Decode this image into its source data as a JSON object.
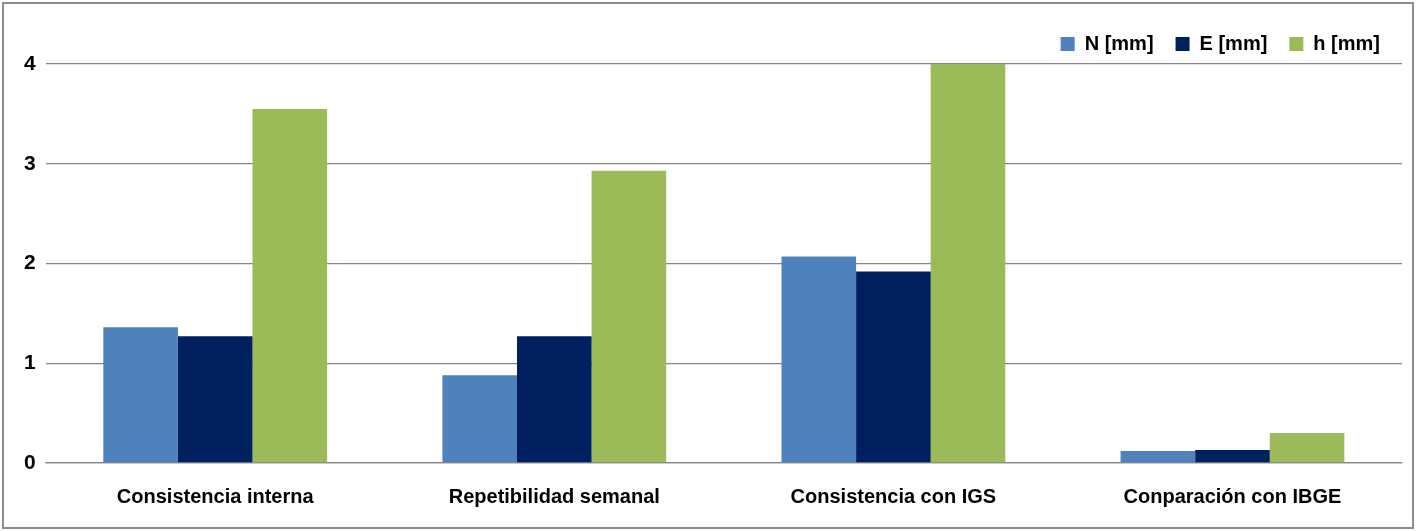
{
  "chart_data": {
    "type": "bar",
    "categories": [
      "Consistencia interna",
      "Repetibilidad semanal",
      "Consistencia con IGS",
      "Conparación con IBGE"
    ],
    "series": [
      {
        "name": "N [mm]",
        "color": "#4f81bd",
        "values": [
          1.36,
          0.88,
          2.07,
          0.12
        ]
      },
      {
        "name": "E [mm]",
        "color": "#002060",
        "values": [
          1.27,
          1.27,
          1.92,
          0.13
        ]
      },
      {
        "name": "h [mm]",
        "color": "#9bbb59",
        "values": [
          3.55,
          2.93,
          4.0,
          0.3
        ]
      }
    ],
    "ylim": [
      0,
      4
    ],
    "yticks": [
      0,
      1,
      2,
      3,
      4
    ],
    "grid": "y",
    "legend": "top right"
  }
}
